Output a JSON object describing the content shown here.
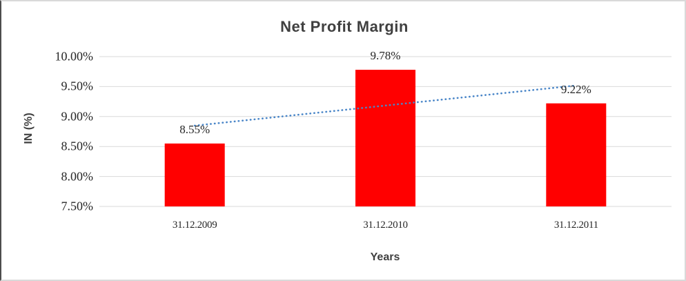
{
  "chart_data": {
    "type": "bar",
    "title": "Net Profit Margin",
    "xlabel": "Years",
    "ylabel": "IN (%)",
    "categories": [
      "31.12.2009",
      "31.12.2010",
      "31.12.2011"
    ],
    "values": [
      8.55,
      9.78,
      9.22
    ],
    "data_labels": [
      "8.55%",
      "9.78%",
      "9.22%"
    ],
    "yticks": [
      {
        "value": 7.5,
        "label": "7.50%"
      },
      {
        "value": 8.0,
        "label": "8.00%"
      },
      {
        "value": 8.5,
        "label": "8.50%"
      },
      {
        "value": 9.0,
        "label": "9.00%"
      },
      {
        "value": 9.5,
        "label": "9.50%"
      },
      {
        "value": 10.0,
        "label": "10.00%"
      }
    ],
    "ylim": [
      7.5,
      10.0
    ],
    "grid": true,
    "legend": false,
    "bar_color": "#FF0000",
    "gridline_color": "#D9D9D9",
    "trendline": {
      "type": "linear",
      "style": "dotted",
      "color": "#4A86C8"
    },
    "title_color": "#404040",
    "tick_label_color": "#262626"
  }
}
